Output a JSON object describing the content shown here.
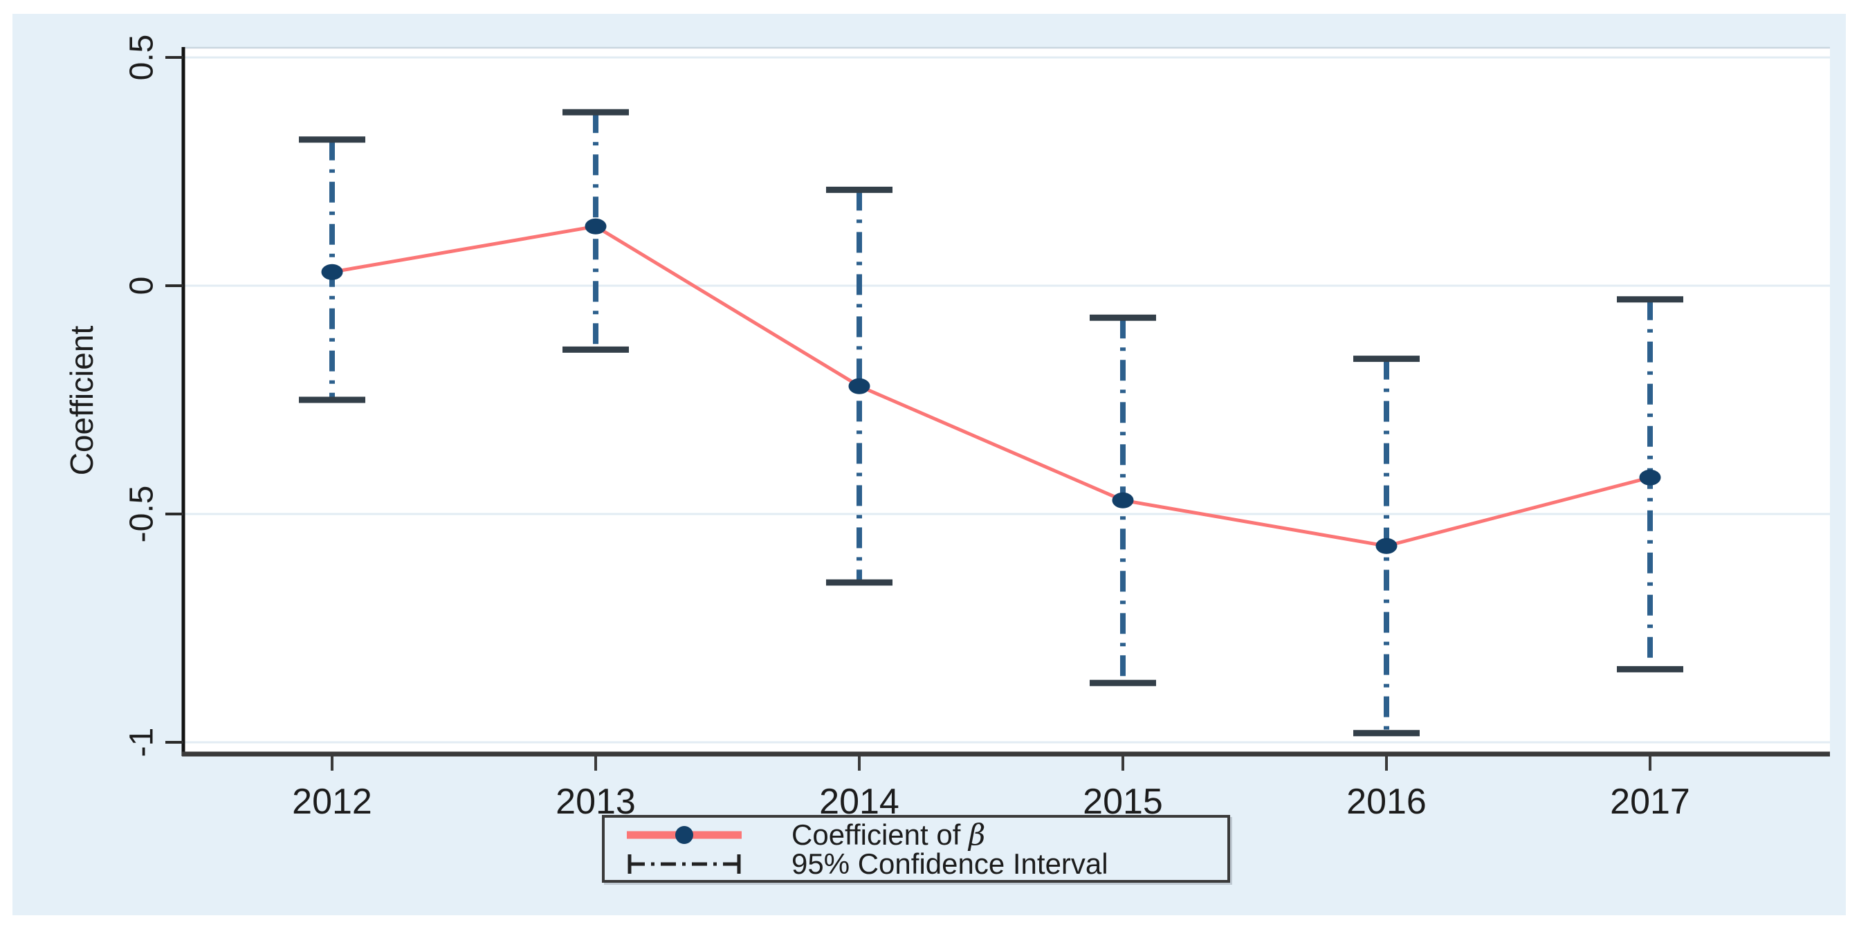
{
  "chart_data": {
    "type": "line",
    "title": "",
    "xlabel": "",
    "ylabel": "Coefficient",
    "categories": [
      "2012",
      "2013",
      "2014",
      "2015",
      "2016",
      "2017"
    ],
    "series": [
      {
        "name": "Coefficient of β",
        "type": "line-with-markers",
        "values": [
          0.03,
          0.13,
          -0.22,
          -0.47,
          -0.57,
          -0.42
        ]
      },
      {
        "name": "95% Confidence Interval",
        "type": "error-bars",
        "high": [
          0.32,
          0.38,
          0.21,
          -0.07,
          -0.16,
          -0.03
        ],
        "low": [
          -0.25,
          -0.14,
          -0.65,
          -0.87,
          -0.98,
          -0.84
        ]
      }
    ],
    "y_ticks": [
      0.5,
      0,
      -0.5,
      -1
    ],
    "y_tick_labels": [
      "0.5",
      "0",
      "-0.5",
      "-1"
    ],
    "ylim": [
      -1.03,
      0.52
    ],
    "grid": true,
    "legend_position": "bottom-center"
  },
  "legend": {
    "series1_prefix": "Coefficient of ",
    "series1_symbol": "β",
    "series2_label": "95% Confidence Interval"
  },
  "colors": {
    "figure_background": "#e5f0f8",
    "plot_background": "#ffffff",
    "gridline": "#e2ecf3",
    "plot_top_border": "#c9d6e0",
    "y_axis": "#121212",
    "x_axis": "#3a3a3a",
    "tick": "#2a2a2a",
    "text": "#1c1c1c",
    "coefficient_line": "#fb7676",
    "marker": "#123f68",
    "ci_line": "#2d608d",
    "ci_cap": "#333f49",
    "legend_border": "#3a3a3a",
    "legend_ci_line": "#222222"
  }
}
